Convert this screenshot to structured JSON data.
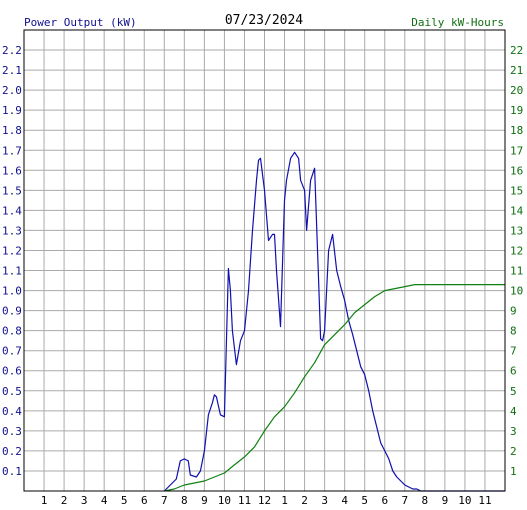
{
  "chart_data": {
    "type": "line",
    "title": "07/23/2024",
    "ylabel_left": "Power Output (kW)",
    "ylabel_right": "Daily kW-Hours",
    "x_ticks": [
      "1",
      "2",
      "3",
      "4",
      "5",
      "6",
      "7",
      "8",
      "9",
      "10",
      "11",
      "12",
      "1",
      "2",
      "3",
      "4",
      "5",
      "6",
      "7",
      "8",
      "9",
      "10",
      "11"
    ],
    "xlim": [
      0,
      24
    ],
    "y_left_ticks": [
      "0.1",
      "0.2",
      "0.3",
      "0.4",
      "0.5",
      "0.6",
      "0.7",
      "0.8",
      "0.9",
      "1.0",
      "1.1",
      "1.2",
      "1.3",
      "1.4",
      "1.5",
      "1.6",
      "1.7",
      "1.8",
      "1.9",
      "2.0",
      "2.1",
      "2.2"
    ],
    "ylim_left": [
      0,
      2.3
    ],
    "y_right_ticks": [
      "1",
      "2",
      "3",
      "4",
      "5",
      "6",
      "7",
      "8",
      "9",
      "10",
      "11",
      "12",
      "13",
      "14",
      "15",
      "16",
      "17",
      "18",
      "19",
      "20",
      "21",
      "22"
    ],
    "ylim_right": [
      0,
      23
    ],
    "grid": true,
    "colors": {
      "power": "#1010b0",
      "energy": "#108010",
      "grid": "#aaaaaa",
      "left_axis": "#101090",
      "right_axis": "#107010",
      "frame": "#000000"
    },
    "series": [
      {
        "name": "Power Output (kW)",
        "axis": "left",
        "x": [
          7.0,
          7.3,
          7.6,
          7.8,
          8.0,
          8.2,
          8.3,
          8.6,
          8.8,
          9.0,
          9.2,
          9.4,
          9.5,
          9.6,
          9.8,
          10.0,
          10.2,
          10.3,
          10.4,
          10.6,
          10.8,
          11.0,
          11.2,
          11.4,
          11.6,
          11.7,
          11.8,
          12.0,
          12.2,
          12.4,
          12.5,
          12.6,
          12.8,
          13.0,
          13.1,
          13.3,
          13.5,
          13.7,
          13.8,
          14.0,
          14.1,
          14.3,
          14.5,
          14.7,
          14.8,
          14.9,
          15.0,
          15.2,
          15.4,
          15.6,
          15.8,
          16.0,
          16.2,
          16.4,
          16.6,
          16.8,
          17.0,
          17.2,
          17.4,
          17.6,
          17.8,
          18.0,
          18.2,
          18.4,
          18.6,
          18.8,
          19.0,
          19.2,
          19.4,
          19.6,
          19.8,
          20.0,
          20.2,
          20.4,
          20.6,
          20.8,
          21.0,
          21.5,
          22.0,
          24.0
        ],
        "y": [
          0.0,
          0.03,
          0.06,
          0.15,
          0.16,
          0.15,
          0.08,
          0.07,
          0.1,
          0.2,
          0.38,
          0.44,
          0.48,
          0.47,
          0.38,
          0.37,
          1.11,
          1.0,
          0.8,
          0.63,
          0.75,
          0.8,
          1.0,
          1.3,
          1.55,
          1.65,
          1.66,
          1.5,
          1.25,
          1.28,
          1.28,
          1.1,
          0.82,
          1.45,
          1.55,
          1.66,
          1.69,
          1.66,
          1.55,
          1.5,
          1.3,
          1.55,
          1.61,
          1.05,
          0.76,
          0.75,
          0.8,
          1.2,
          1.28,
          1.1,
          1.02,
          0.95,
          0.85,
          0.78,
          0.7,
          0.62,
          0.58,
          0.5,
          0.4,
          0.32,
          0.24,
          0.2,
          0.16,
          0.1,
          0.07,
          0.05,
          0.03,
          0.02,
          0.01,
          0.01,
          0.0,
          0.0,
          0.0,
          0.0,
          0.0,
          0.0,
          0.0,
          0.0,
          0.0,
          0.0
        ]
      },
      {
        "name": "Daily kW-Hours",
        "axis": "right",
        "x": [
          7.0,
          7.5,
          8.0,
          8.5,
          9.0,
          9.5,
          10.0,
          10.5,
          11.0,
          11.5,
          12.0,
          12.5,
          13.0,
          13.5,
          14.0,
          14.5,
          15.0,
          15.5,
          16.0,
          16.5,
          17.0,
          17.5,
          18.0,
          18.5,
          19.0,
          19.5,
          20.0,
          21.0,
          22.0,
          24.0
        ],
        "y": [
          0.0,
          0.1,
          0.3,
          0.4,
          0.5,
          0.7,
          0.9,
          1.3,
          1.7,
          2.2,
          3.0,
          3.7,
          4.2,
          4.9,
          5.7,
          6.4,
          7.3,
          7.8,
          8.3,
          8.9,
          9.3,
          9.7,
          10.0,
          10.1,
          10.2,
          10.3,
          10.3,
          10.3,
          10.3,
          10.3
        ]
      }
    ]
  }
}
